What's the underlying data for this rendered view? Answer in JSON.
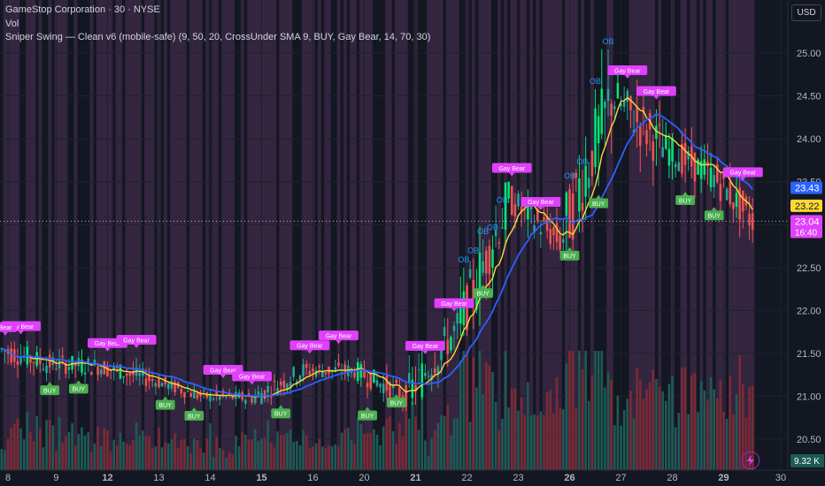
{
  "header": {
    "symbol_line": "GameStop Corporation · 30 · NYSE",
    "vol_label": "Vol",
    "indicator_line": "Sniper Swing — Clean v6 (mobile-safe) (9, 50, 20, CrossUnder SMA 9, BUY, Gay Bear, 14, 70, 30)",
    "currency_button": "USD"
  },
  "colors": {
    "background": "#131722",
    "bull": "#26a69a",
    "bull_bright": "#00e676",
    "bear": "#ef5350",
    "bear_band": "#3f2b4a",
    "sma_fast": "#fdd835",
    "sma_slow": "#2962ff",
    "ob_label": "#2196f3",
    "gay_bear_label": "#e040fb",
    "buy_label": "#4caf50",
    "vol_bull": "#1e5a54",
    "vol_bear": "#7a2a35"
  },
  "chart_data": {
    "type": "candlestick",
    "y_axis": {
      "ticks": [
        "25.00",
        "24.50",
        "24.00",
        "23.50",
        "23.00",
        "22.50",
        "22.00",
        "21.50",
        "21.00",
        "20.50"
      ],
      "range": [
        20.3,
        25.45
      ]
    },
    "x_axis": {
      "ticks": [
        "8",
        "9",
        "12",
        "13",
        "14",
        "15",
        "16",
        "20",
        "21",
        "22",
        "23",
        "26",
        "27",
        "28",
        "29",
        "30"
      ]
    },
    "price_labels": {
      "sma_slow": "23.43",
      "sma_fast": "23.22",
      "last": "23.04",
      "countdown": "16:40",
      "volume": "9.32 K"
    },
    "markers": {
      "ob": "OB",
      "gay_bear": "Gay Bear",
      "buy": "BUY",
      "short_bear": "Bear"
    },
    "segments": [
      {
        "label": "8",
        "n": 15,
        "o": 21.55,
        "c": 21.38,
        "lo": 21.1,
        "hi": 21.85
      },
      {
        "label": "9",
        "n": 16,
        "o": 21.38,
        "c": 21.35,
        "lo": 21.05,
        "hi": 21.7
      },
      {
        "label": "12",
        "n": 16,
        "o": 21.35,
        "c": 21.2,
        "lo": 21.0,
        "hi": 21.6
      },
      {
        "label": "13",
        "n": 16,
        "o": 21.2,
        "c": 21.0,
        "lo": 20.88,
        "hi": 21.35
      },
      {
        "label": "14",
        "n": 16,
        "o": 21.0,
        "c": 20.98,
        "lo": 20.85,
        "hi": 21.3
      },
      {
        "label": "15",
        "n": 16,
        "o": 20.98,
        "c": 21.3,
        "lo": 20.9,
        "hi": 21.55
      },
      {
        "label": "16",
        "n": 16,
        "o": 21.3,
        "c": 21.3,
        "lo": 21.0,
        "hi": 21.55
      },
      {
        "label": "20",
        "n": 16,
        "o": 21.3,
        "c": 21.0,
        "lo": 20.75,
        "hi": 21.45
      },
      {
        "label": "21",
        "n": 16,
        "o": 21.0,
        "c": 21.8,
        "lo": 20.9,
        "hi": 22.2
      },
      {
        "label": "22",
        "n": 16,
        "o": 21.8,
        "c": 23.3,
        "lo": 21.7,
        "hi": 23.5
      },
      {
        "label": "23",
        "n": 16,
        "o": 23.3,
        "c": 22.8,
        "lo": 22.4,
        "hi": 23.45
      },
      {
        "label": "26",
        "n": 16,
        "o": 22.8,
        "c": 24.5,
        "lo": 22.7,
        "hi": 25.1
      },
      {
        "label": "27",
        "n": 16,
        "o": 24.5,
        "c": 23.9,
        "lo": 23.2,
        "hi": 24.8
      },
      {
        "label": "28",
        "n": 16,
        "o": 23.9,
        "c": 23.55,
        "lo": 23.3,
        "hi": 24.4
      },
      {
        "label": "29",
        "n": 12,
        "o": 23.55,
        "c": 23.04,
        "lo": 22.7,
        "hi": 23.8
      }
    ]
  }
}
